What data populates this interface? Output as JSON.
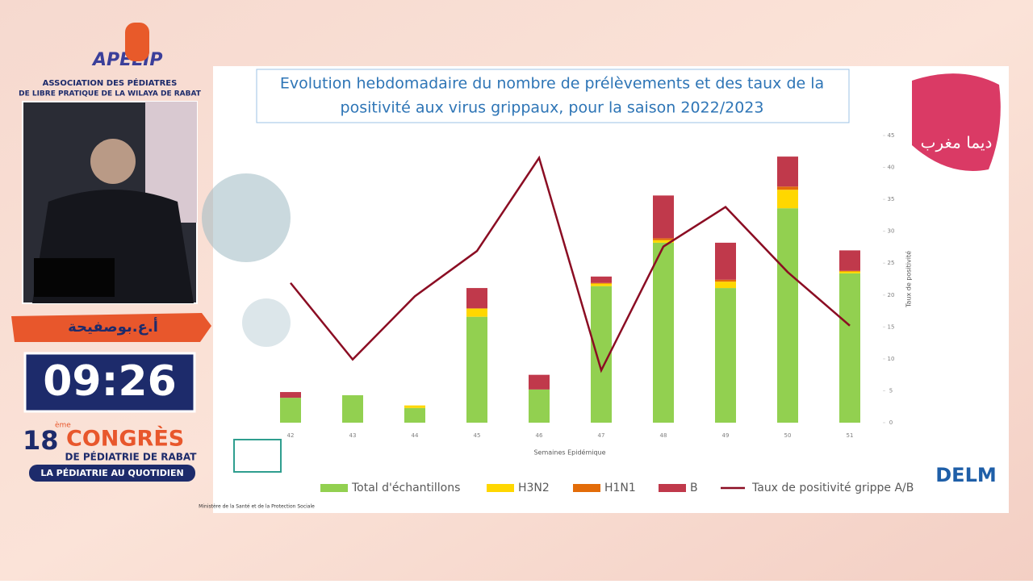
{
  "overlay": {
    "logo": "APELIP",
    "association_line1": "ASSOCIATION DES PÉDIATRES",
    "association_line2": "DE LIBRE PRATIQUE DE LA WILAYA DE RABAT",
    "speaker": "أ.ع.بوصفيحة",
    "timer": "09:26",
    "congress_number": "18",
    "congress_suffix": "ème",
    "congress_word": "CONGRÈS",
    "congress_subtitle": "DE PÉDIATRIE DE RABAT",
    "congress_tagline": "LA PÉDIATRIE AU QUOTIDIEN"
  },
  "slide": {
    "ministry": "Ministère de la Santé et de la Protection Sociale",
    "delm": "DELM",
    "flag_text": "ديما مغرب"
  },
  "chart_data": {
    "type": "bar",
    "stacked": true,
    "title_lines": [
      "Evolution hebdomadaire du nombre de prélèvements et des taux de la",
      "positivité  aux virus grippaux, pour la saison 2022/2023"
    ],
    "xlabel": "Semaines Epidémique",
    "ylabel": "Taux de positivité",
    "categories": [
      "42",
      "43",
      "44",
      "45",
      "46",
      "47",
      "48",
      "49",
      "50",
      "51"
    ],
    "ylim": [
      0,
      45
    ],
    "yticks": [
      0,
      5,
      10,
      15,
      20,
      25,
      30,
      35,
      40,
      45
    ],
    "series": [
      {
        "name": "Total d'échantillons",
        "color": "#92d050",
        "values": [
          3.9,
          4.3,
          2.3,
          16.6,
          5.2,
          21.4,
          28.2,
          21.1,
          33.6,
          23.4
        ]
      },
      {
        "name": "H3N2",
        "color": "#ffd700",
        "values": [
          0,
          0,
          0.4,
          1.3,
          0,
          0.4,
          0.4,
          1.0,
          2.9,
          0.3
        ]
      },
      {
        "name": "H1N1",
        "color": "#e36c09",
        "values": [
          0,
          0,
          0,
          0,
          0,
          0.1,
          0.3,
          0.3,
          0.5,
          0.1
        ]
      },
      {
        "name": "B",
        "color": "#c0394b",
        "values": [
          0.9,
          0,
          0,
          3.2,
          2.3,
          1.0,
          6.7,
          5.8,
          4.7,
          3.2
        ]
      },
      {
        "name": "Taux de positivité grippe A/B",
        "color": "#8b0d23",
        "type": "line",
        "values": [
          21.9,
          9.9,
          19.8,
          26.9,
          41.5,
          8.2,
          27.6,
          33.8,
          23.6,
          15.2
        ]
      }
    ]
  }
}
